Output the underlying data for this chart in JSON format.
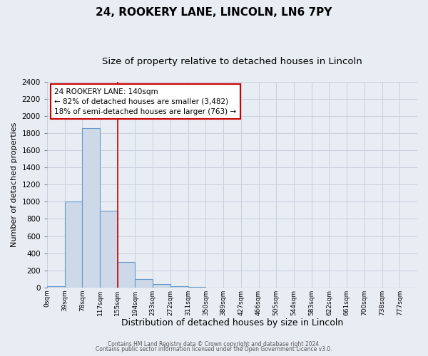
{
  "title": "24, ROOKERY LANE, LINCOLN, LN6 7PY",
  "subtitle": "Size of property relative to detached houses in Lincoln",
  "xlabel": "Distribution of detached houses by size in Lincoln",
  "ylabel": "Number of detached properties",
  "footer_lines": [
    "Contains HM Land Registry data © Crown copyright and database right 2024.",
    "Contains public sector information licensed under the Open Government Licence v3.0."
  ],
  "bin_labels": [
    "0sqm",
    "39sqm",
    "78sqm",
    "117sqm",
    "155sqm",
    "194sqm",
    "233sqm",
    "272sqm",
    "311sqm",
    "350sqm",
    "389sqm",
    "427sqm",
    "466sqm",
    "505sqm",
    "544sqm",
    "583sqm",
    "622sqm",
    "661sqm",
    "700sqm",
    "738sqm",
    "777sqm"
  ],
  "bar_values": [
    18,
    1005,
    1860,
    895,
    300,
    100,
    42,
    18,
    5,
    0,
    0,
    0,
    0,
    0,
    0,
    0,
    0,
    0,
    0,
    0,
    0
  ],
  "bar_color": "#cdd9e8",
  "bar_edge_color": "#6699cc",
  "red_line_x": 4.0,
  "annotation_text": "24 ROOKERY LANE: 140sqm\n← 82% of detached houses are smaller (3,482)\n18% of semi-detached houses are larger (763) →",
  "annotation_box_color": "#ffffff",
  "annotation_box_edge": "#cc0000",
  "ylim": [
    0,
    2400
  ],
  "yticks": [
    0,
    200,
    400,
    600,
    800,
    1000,
    1200,
    1400,
    1600,
    1800,
    2000,
    2200,
    2400
  ],
  "background_color": "#e8edf4",
  "plot_bg_color": "#e8edf4",
  "grid_color": "#c8d0dc",
  "title_fontsize": 11,
  "subtitle_fontsize": 9.5,
  "annot_fontsize": 7.5,
  "ylabel_fontsize": 8,
  "xlabel_fontsize": 9
}
